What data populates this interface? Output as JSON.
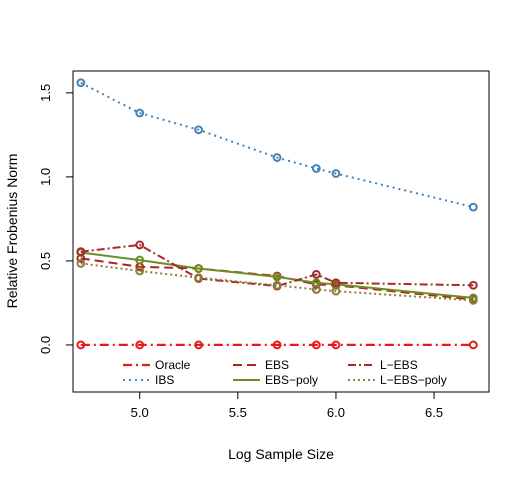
{
  "chart_data": {
    "type": "line",
    "xlabel": "Log Sample Size",
    "ylabel": "Relative Frobenius Norm",
    "xlim": [
      4.66,
      6.78
    ],
    "ylim": [
      -0.28,
      1.63
    ],
    "xticks": [
      "5.0",
      "5.5",
      "6.0",
      "6.5"
    ],
    "xtick_values": [
      5.0,
      5.5,
      6.0,
      6.5
    ],
    "yticks": [
      "0.0",
      "0.5",
      "1.0",
      "1.5"
    ],
    "ytick_values": [
      0.0,
      0.5,
      1.0,
      1.5
    ],
    "x": [
      4.7,
      5.0,
      5.3,
      5.7,
      5.9,
      6.0,
      6.7
    ],
    "grid": false,
    "legend_position": "bottom-center",
    "series": [
      {
        "name": "Oracle",
        "color": "#e31a1c",
        "dash": "9,4,2,4",
        "width": 2.2,
        "values": [
          0.0,
          0.0,
          0.0,
          0.0,
          0.0,
          0.0,
          0.0
        ]
      },
      {
        "name": "IBS",
        "color": "#4682b4",
        "dash": "2,4",
        "width": 2.0,
        "values": [
          1.56,
          1.38,
          1.28,
          1.115,
          1.05,
          1.02,
          0.82
        ]
      },
      {
        "name": "EBS",
        "color": "#b22222",
        "dash": "9,5",
        "width": 2.0,
        "values": [
          0.515,
          0.465,
          0.455,
          0.41,
          0.36,
          0.355,
          0.27
        ]
      },
      {
        "name": "EBS−poly",
        "color": "#6b8e23",
        "dash": "",
        "width": 2.0,
        "values": [
          0.55,
          0.505,
          0.455,
          0.405,
          0.37,
          0.36,
          0.28
        ]
      },
      {
        "name": "L−EBS",
        "color": "#a52a2a",
        "dash": "8,3,2,3",
        "width": 2.0,
        "values": [
          0.555,
          0.595,
          0.395,
          0.35,
          0.42,
          0.37,
          0.355
        ]
      },
      {
        "name": "L−EBS−poly",
        "color": "#8b7d3a",
        "dash": "2,3",
        "width": 2.0,
        "values": [
          0.485,
          0.44,
          0.4,
          0.355,
          0.33,
          0.32,
          0.265
        ]
      }
    ]
  }
}
